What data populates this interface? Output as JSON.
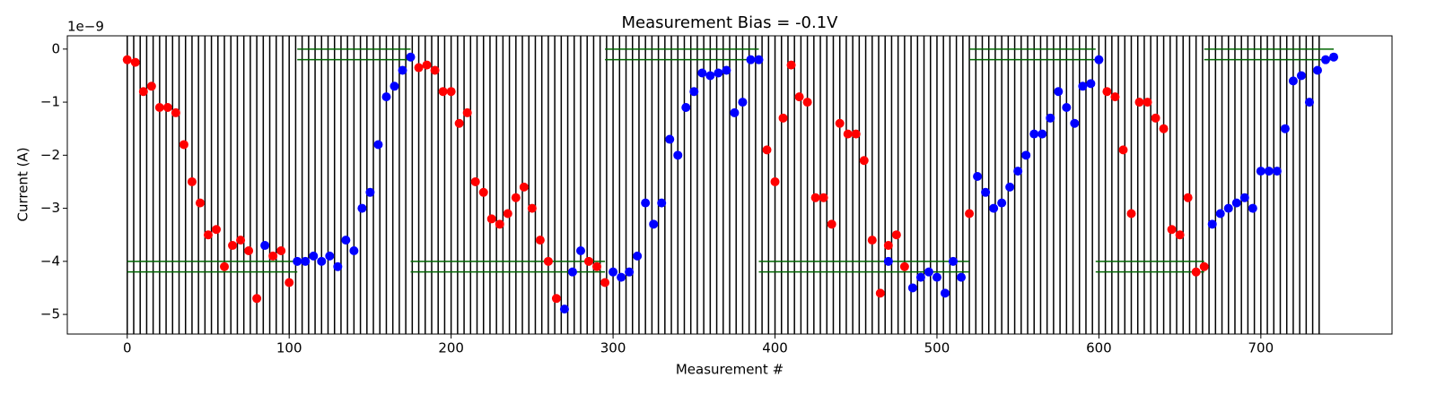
{
  "chart_data": {
    "type": "scatter",
    "title": "Measurement Bias = -0.1V",
    "xlabel": "Measurement #",
    "ylabel": "Current (A)",
    "y_offset_label": "1e−9",
    "xlim": [
      -37,
      781
    ],
    "ylim": [
      -5.37,
      0.25
    ],
    "xticks": [
      0,
      100,
      200,
      300,
      400,
      500,
      600,
      700
    ],
    "yticks": [
      {
        "value": 0,
        "label": "0"
      },
      {
        "value": -1,
        "label": "−1"
      },
      {
        "value": -2,
        "label": "−2"
      },
      {
        "value": -3,
        "label": "−3"
      },
      {
        "value": -4,
        "label": "−4"
      },
      {
        "value": -5,
        "label": "−5"
      }
    ],
    "vline_color": "#000000",
    "vlines": [
      0,
      4,
      8,
      12,
      16,
      20,
      24,
      28,
      32,
      36,
      40,
      44,
      48,
      52,
      56,
      60,
      64,
      68,
      72,
      76,
      80,
      84,
      88,
      92,
      96,
      100,
      104,
      108,
      112,
      116,
      120,
      124,
      128,
      132,
      136,
      140,
      144,
      148,
      152,
      156,
      160,
      164,
      168,
      172,
      176,
      180,
      184,
      188,
      192,
      196,
      200,
      204,
      208,
      212,
      216,
      220,
      224,
      228,
      232,
      236,
      240,
      244,
      248,
      252,
      256,
      260,
      264,
      268,
      272,
      276,
      280,
      284,
      288,
      292,
      296,
      300,
      304,
      308,
      312,
      316,
      320,
      324,
      328,
      332,
      336,
      340,
      344,
      348,
      352,
      356,
      360,
      364,
      368,
      372,
      376,
      380,
      384,
      388,
      392,
      396,
      400,
      404,
      408,
      412,
      416,
      420,
      424,
      428,
      432,
      436,
      440,
      444,
      448,
      452,
      456,
      460,
      464,
      468,
      472,
      476,
      480,
      484,
      488,
      492,
      496,
      500,
      504,
      508,
      512,
      516,
      520,
      524,
      528,
      532,
      536,
      540,
      544,
      548,
      552,
      556,
      560,
      564,
      568,
      572,
      576,
      580,
      584,
      588,
      592,
      596,
      600,
      604,
      608,
      612,
      616,
      620,
      624,
      628,
      632,
      636,
      640,
      644,
      648,
      652,
      656,
      660,
      664,
      668,
      672,
      676,
      680,
      684,
      688,
      692,
      696,
      700,
      704,
      708,
      712,
      716,
      720,
      724,
      728,
      732,
      736
    ],
    "hline_color": "#006400",
    "hlines": [
      {
        "y": 0,
        "xmin": 105,
        "xmax": 175
      },
      {
        "y": -0.2,
        "xmin": 105,
        "xmax": 175
      },
      {
        "y": 0,
        "xmin": 295,
        "xmax": 390
      },
      {
        "y": -0.2,
        "xmin": 295,
        "xmax": 390
      },
      {
        "y": 0,
        "xmin": 520,
        "xmax": 598
      },
      {
        "y": -0.2,
        "xmin": 520,
        "xmax": 598
      },
      {
        "y": 0,
        "xmin": 665,
        "xmax": 745
      },
      {
        "y": -0.2,
        "xmin": 665,
        "xmax": 745
      },
      {
        "y": -4.0,
        "xmin": 0,
        "xmax": 105
      },
      {
        "y": -4.2,
        "xmin": 0,
        "xmax": 105
      },
      {
        "y": -4.0,
        "xmin": 175,
        "xmax": 295
      },
      {
        "y": -4.2,
        "xmin": 175,
        "xmax": 295
      },
      {
        "y": -4.0,
        "xmin": 390,
        "xmax": 520
      },
      {
        "y": -4.2,
        "xmin": 390,
        "xmax": 520
      },
      {
        "y": -4.0,
        "xmin": 598,
        "xmax": 665
      },
      {
        "y": -4.2,
        "xmin": 598,
        "xmax": 665
      }
    ],
    "series": [
      {
        "color": "#ff0000",
        "x": [
          0,
          5,
          10,
          15,
          20,
          25,
          30,
          35,
          40,
          45,
          50,
          55,
          60,
          65,
          70,
          75,
          80,
          90,
          95,
          100,
          180,
          185,
          190,
          195,
          200,
          205,
          210,
          215,
          220,
          225,
          230,
          235,
          240,
          245,
          250,
          255,
          260,
          265,
          285,
          290,
          295,
          395,
          400,
          405,
          410,
          415,
          420,
          425,
          430,
          435,
          440,
          445,
          450,
          455,
          460,
          465,
          470,
          475,
          480,
          520,
          605,
          610,
          615,
          620,
          625,
          630,
          635,
          640,
          645,
          650,
          655,
          660,
          665
        ],
        "values": [
          -0.2,
          -0.25,
          -0.8,
          -0.7,
          -1.1,
          -1.1,
          -1.2,
          -1.8,
          -2.5,
          -2.9,
          -3.5,
          -3.4,
          -4.1,
          -3.7,
          -3.6,
          -3.8,
          -4.7,
          -3.9,
          -3.8,
          -4.4,
          -0.35,
          -0.3,
          -0.4,
          -0.8,
          -0.8,
          -1.4,
          -1.2,
          -2.5,
          -2.7,
          -3.2,
          -3.3,
          -3.1,
          -2.8,
          -2.6,
          -3.0,
          -3.6,
          -4.0,
          -4.7,
          -4.0,
          -4.1,
          -4.4,
          -1.9,
          -2.5,
          -1.3,
          -0.3,
          -0.9,
          -1.0,
          -2.8,
          -2.8,
          -3.3,
          -1.4,
          -1.6,
          -1.6,
          -2.1,
          -3.6,
          -4.6,
          -3.7,
          -3.5,
          -4.1,
          -3.1,
          -0.8,
          -0.9,
          -1.9,
          -3.1,
          -1.0,
          -1.0,
          -1.3,
          -1.5,
          -3.4,
          -3.5,
          -2.8,
          -4.2,
          -4.1
        ]
      },
      {
        "color": "#0000ff",
        "x": [
          85,
          105,
          110,
          115,
          120,
          125,
          130,
          135,
          140,
          145,
          150,
          155,
          160,
          165,
          170,
          175,
          270,
          275,
          280,
          300,
          305,
          310,
          315,
          320,
          325,
          330,
          335,
          340,
          345,
          350,
          355,
          360,
          365,
          370,
          375,
          380,
          385,
          390,
          470,
          485,
          490,
          495,
          500,
          505,
          510,
          515,
          525,
          530,
          535,
          540,
          545,
          550,
          555,
          560,
          565,
          570,
          575,
          580,
          585,
          590,
          595,
          600,
          670,
          675,
          680,
          685,
          690,
          695,
          700,
          705,
          710,
          715,
          720,
          725,
          730,
          735,
          740,
          745
        ],
        "values": [
          -3.7,
          -4.0,
          -4.0,
          -3.9,
          -4.0,
          -3.9,
          -4.1,
          -3.6,
          -3.8,
          -3.0,
          -2.7,
          -1.8,
          -0.9,
          -0.7,
          -0.4,
          -0.15,
          -4.9,
          -4.2,
          -3.8,
          -4.2,
          -4.3,
          -4.2,
          -3.9,
          -2.9,
          -3.3,
          -2.9,
          -1.7,
          -2.0,
          -1.1,
          -0.8,
          -0.45,
          -0.5,
          -0.45,
          -0.4,
          -1.2,
          -1.0,
          -0.2,
          -0.2,
          -4.0,
          -4.5,
          -4.3,
          -4.2,
          -4.3,
          -4.6,
          -4.0,
          -4.3,
          -2.4,
          -2.7,
          -3.0,
          -2.9,
          -2.6,
          -2.3,
          -2.0,
          -1.6,
          -1.6,
          -1.3,
          -0.8,
          -1.1,
          -1.4,
          -0.7,
          -0.65,
          -0.2,
          -3.3,
          -3.1,
          -3.0,
          -2.9,
          -2.8,
          -3.0,
          -2.3,
          -2.3,
          -2.3,
          -1.5,
          -0.6,
          -0.5,
          -1.0,
          -0.4,
          -0.2,
          -0.15
        ]
      }
    ]
  }
}
